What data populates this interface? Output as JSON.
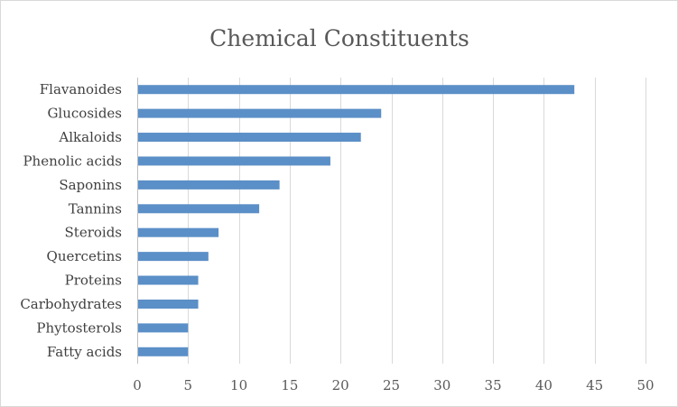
{
  "chart_data": {
    "type": "bar",
    "orientation": "horizontal",
    "title": "Chemical Constituents",
    "xlabel": "",
    "ylabel": "",
    "categories": [
      "Flavanoides",
      "Glucosides",
      "Alkaloids",
      "Phenolic acids",
      "Saponins",
      "Tannins",
      "Steroids",
      "Quercetins",
      "Proteins",
      "Carbohydrates",
      "Phytosterols",
      "Fatty acids"
    ],
    "values": [
      43,
      24,
      22,
      19,
      14,
      12,
      8,
      7,
      6,
      6,
      5,
      5
    ],
    "xlim": [
      0,
      50
    ],
    "ticks": [
      0,
      5,
      10,
      15,
      20,
      25,
      30,
      35,
      40,
      45,
      50
    ],
    "grid": "vertical",
    "legend": "none",
    "bar_color": "#5b8fc7"
  }
}
